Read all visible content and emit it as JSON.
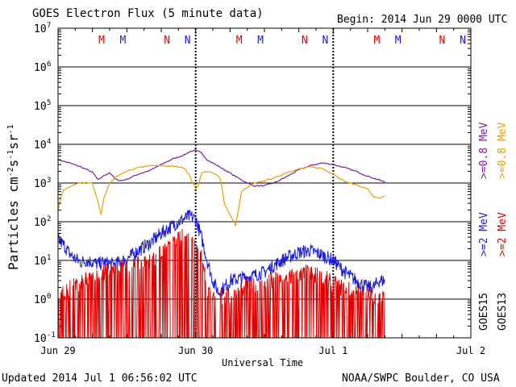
{
  "chart_data": {
    "type": "line",
    "title": "GOES Electron Flux (5 minute data)",
    "begin_label": "Begin: 2014 Jun 29 0000 UTC",
    "xlabel": "Universal Time",
    "ylabel": "Particles cm",
    "ylabel_sup1": "-2",
    "ylabel_mid1": "s",
    "ylabel_sup2": "-1",
    "ylabel_mid2": "sr",
    "ylabel_sup3": "-1",
    "yscale": "log",
    "ylim": [
      0.1,
      10000000
    ],
    "xlim_hours": [
      0,
      72
    ],
    "x_ticks": [
      {
        "hour": 0,
        "label": "Jun 29"
      },
      {
        "hour": 24,
        "label": "Jun 30"
      },
      {
        "hour": 48,
        "label": "Jul 1"
      },
      {
        "hour": 72,
        "label": "Jul 2"
      }
    ],
    "y_ticks": [
      {
        "exp": -1,
        "label": "10",
        "sup": "-1"
      },
      {
        "exp": 0,
        "label": "10",
        "sup": "0"
      },
      {
        "exp": 1,
        "label": "10",
        "sup": "1"
      },
      {
        "exp": 2,
        "label": "10",
        "sup": "2"
      },
      {
        "exp": 3,
        "label": "10",
        "sup": "3"
      },
      {
        "exp": 4,
        "label": "10",
        "sup": "4"
      },
      {
        "exp": 5,
        "label": "10",
        "sup": "5"
      },
      {
        "exp": 6,
        "label": "10",
        "sup": "6"
      },
      {
        "exp": 7,
        "label": "10",
        "sup": "7"
      }
    ],
    "grid": true,
    "threshold_line": 1000,
    "mn_markers": [
      {
        "hour": 7.6,
        "label": "M",
        "color": "#e00000"
      },
      {
        "hour": 11.3,
        "label": "M",
        "color": "#1a1ad8"
      },
      {
        "hour": 19.0,
        "label": "N",
        "color": "#e00000"
      },
      {
        "hour": 22.6,
        "label": "N",
        "color": "#1a1ad8"
      },
      {
        "hour": 31.6,
        "label": "M",
        "color": "#e00000"
      },
      {
        "hour": 35.3,
        "label": "M",
        "color": "#1a1ad8"
      },
      {
        "hour": 43.0,
        "label": "N",
        "color": "#e00000"
      },
      {
        "hour": 46.6,
        "label": "N",
        "color": "#1a1ad8"
      },
      {
        "hour": 55.6,
        "label": "M",
        "color": "#e00000"
      },
      {
        "hour": 59.3,
        "label": "M",
        "color": "#1a1ad8"
      },
      {
        "hour": 67.0,
        "label": "N",
        "color": "#e00000"
      },
      {
        "hour": 70.6,
        "label": "N",
        "color": "#1a1ad8"
      }
    ],
    "legend": [
      {
        "name": ">=0.8 MeV",
        "color": "#7a1fa0"
      },
      {
        "name": ">=0.8 MeV",
        "color": "#e8a00a"
      },
      {
        "name": ">=2 MeV",
        "color": "#1a1ad8"
      },
      {
        "name": ">=2 MeV",
        "color": "#e00000"
      },
      {
        "name": "GOES15",
        "color": "#000000"
      },
      {
        "name": "GOES13",
        "color": "#000000"
      }
    ],
    "series": [
      {
        "name": ">=0.8 MeV",
        "satellite": "GOES15",
        "color": "#7a1fa0",
        "style": "smooth",
        "x": [
          0,
          2,
          4,
          6,
          7,
          8,
          9,
          10,
          11,
          12,
          14,
          16,
          18,
          20,
          22,
          23,
          24,
          25,
          26,
          28,
          30,
          32,
          34,
          36,
          38,
          40,
          42,
          44,
          46,
          48,
          50,
          52,
          54,
          56,
          57
        ],
        "y": [
          4000,
          3300,
          2600,
          1900,
          1200,
          1550,
          1850,
          1250,
          1150,
          1250,
          1700,
          2100,
          3000,
          4200,
          5300,
          6500,
          7000,
          6000,
          4000,
          2700,
          1800,
          1200,
          850,
          850,
          1050,
          1500,
          2200,
          2800,
          3300,
          3000,
          2500,
          2000,
          1500,
          1200,
          1050
        ]
      },
      {
        "name": ">=0.8 MeV",
        "satellite": "GOES13",
        "color": "#e8a00a",
        "style": "smooth",
        "x": [
          0,
          0.5,
          1,
          2,
          3,
          4,
          5,
          6,
          7,
          7.5,
          8,
          9,
          10,
          12,
          14,
          16,
          18,
          20,
          22,
          23,
          24,
          24.5,
          25,
          26,
          27,
          28,
          28.5,
          29,
          30,
          31,
          32,
          34,
          36,
          38,
          40,
          42,
          44,
          46,
          48,
          50,
          52,
          54,
          55,
          56,
          57
        ],
        "y": [
          200,
          450,
          650,
          800,
          950,
          1000,
          1050,
          1000,
          300,
          150,
          400,
          1000,
          1400,
          2000,
          2500,
          2800,
          2800,
          2700,
          2500,
          1500,
          700,
          900,
          1800,
          2000,
          1800,
          1500,
          1000,
          300,
          150,
          80,
          600,
          950,
          1150,
          1400,
          1900,
          2300,
          2600,
          2400,
          1700,
          1100,
          900,
          700,
          450,
          400,
          450
        ]
      },
      {
        "name": ">=2 MeV",
        "satellite": "GOES15",
        "color": "#1a1ad8",
        "style": "noisy",
        "x": [
          0,
          1,
          2,
          3,
          4,
          5,
          6,
          7,
          8,
          9,
          10,
          12,
          14,
          16,
          18,
          20,
          22,
          23,
          24,
          25,
          26,
          27,
          28,
          29,
          30,
          32,
          34,
          36,
          38,
          40,
          42,
          44,
          46,
          48,
          50,
          52,
          54,
          55,
          56,
          57
        ],
        "y": [
          35,
          25,
          15,
          11,
          9,
          10,
          9,
          8,
          9,
          8,
          8,
          11,
          18,
          28,
          50,
          80,
          120,
          140,
          120,
          40,
          10,
          3,
          1.5,
          2,
          3,
          3.5,
          4,
          5,
          8,
          12,
          16,
          18,
          14,
          10,
          5,
          3,
          2,
          2,
          3,
          3
        ]
      },
      {
        "name": ">=2 MeV",
        "satellite": "GOES13",
        "color": "#e00000",
        "style": "spiky",
        "x": [
          0,
          2,
          4,
          6,
          8,
          10,
          12,
          14,
          16,
          18,
          20,
          22,
          24,
          25,
          26,
          28,
          30,
          32,
          34,
          36,
          38,
          40,
          42,
          44,
          46,
          48,
          50,
          52,
          54,
          56,
          57
        ],
        "y": [
          1,
          1.5,
          2,
          3,
          4,
          5,
          5,
          6,
          8,
          12,
          20,
          35,
          30,
          10,
          1,
          0.8,
          1,
          1.5,
          1.8,
          2,
          2.5,
          3,
          3.5,
          4,
          3,
          2,
          1.5,
          1.2,
          1,
          1,
          1
        ]
      }
    ]
  },
  "footer": {
    "updated": "Updated 2014 Jul  1 06:56:02 UTC",
    "credit": "NOAA/SWPC Boulder, CO USA"
  }
}
